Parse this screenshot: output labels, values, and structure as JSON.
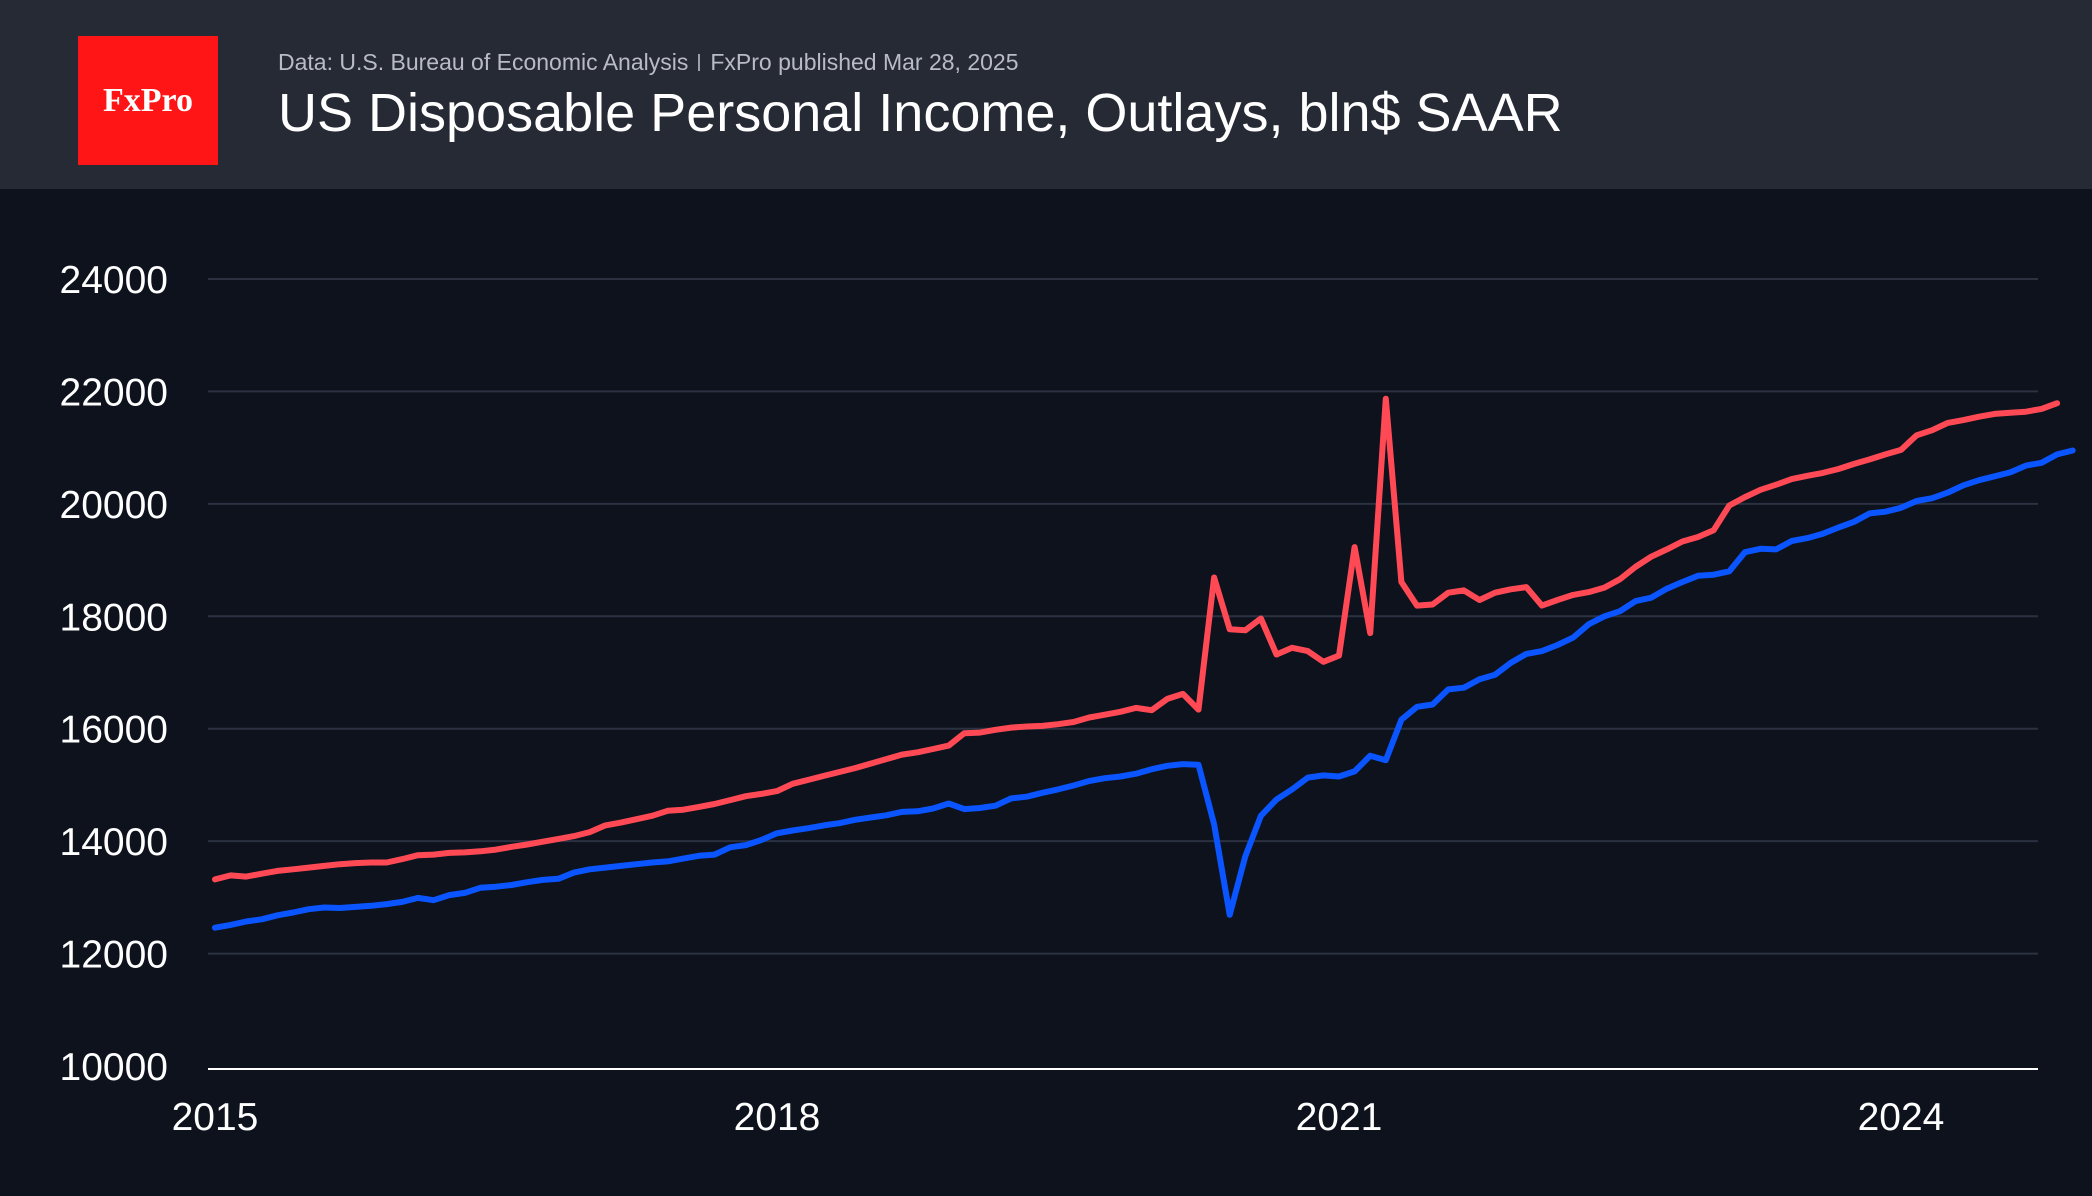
{
  "header": {
    "logo_text": "FxPro",
    "source": "Data: U.S. Bureau of Economic Analysis",
    "published": "FxPro published Mar 28, 2025",
    "title": "US Disposable Personal Income, Outlays, bln$ SAAR"
  },
  "colors": {
    "background": "#0d121d",
    "header_bg": "#262a35",
    "logo_bg": "#ff1515",
    "income": "#ff4a55",
    "outlays": "#0a55ff",
    "grid": "#2b3140"
  },
  "chart_data": {
    "type": "line",
    "title": "US Disposable Personal Income, Outlays, bln$ SAAR",
    "xlabel": "",
    "ylabel": "",
    "x_start": "2015-01",
    "x_end": "2025-01",
    "xticks": [
      {
        "label": "2015",
        "value": 2015
      },
      {
        "label": "2018",
        "value": 2018
      },
      {
        "label": "2021",
        "value": 2021
      },
      {
        "label": "2024",
        "value": 2024
      }
    ],
    "ylim": [
      10000,
      24000
    ],
    "yticks": [
      10000,
      12000,
      14000,
      16000,
      18000,
      20000,
      22000,
      24000
    ],
    "grid": true,
    "legend": "none",
    "series": [
      {
        "color": "#ff4a55",
        "points": [
          [
            "2015-01",
            13320
          ],
          [
            "2015-02",
            13390
          ],
          [
            "2015-03",
            13370
          ],
          [
            "2015-04",
            13420
          ],
          [
            "2015-05",
            13470
          ],
          [
            "2015-06",
            13500
          ],
          [
            "2015-07",
            13530
          ],
          [
            "2015-08",
            13560
          ],
          [
            "2015-09",
            13590
          ],
          [
            "2015-10",
            13610
          ],
          [
            "2015-11",
            13620
          ],
          [
            "2015-12",
            13620
          ],
          [
            "2016-01",
            13680
          ],
          [
            "2016-02",
            13750
          ],
          [
            "2016-03",
            13760
          ],
          [
            "2016-04",
            13790
          ],
          [
            "2016-05",
            13800
          ],
          [
            "2016-06",
            13820
          ],
          [
            "2016-07",
            13850
          ],
          [
            "2016-08",
            13900
          ],
          [
            "2016-09",
            13940
          ],
          [
            "2016-10",
            13990
          ],
          [
            "2016-11",
            14040
          ],
          [
            "2016-12",
            14090
          ],
          [
            "2017-01",
            14160
          ],
          [
            "2017-02",
            14280
          ],
          [
            "2017-03",
            14330
          ],
          [
            "2017-04",
            14390
          ],
          [
            "2017-05",
            14450
          ],
          [
            "2017-06",
            14540
          ],
          [
            "2017-07",
            14560
          ],
          [
            "2017-08",
            14610
          ],
          [
            "2017-09",
            14660
          ],
          [
            "2017-10",
            14730
          ],
          [
            "2017-11",
            14800
          ],
          [
            "2017-12",
            14840
          ],
          [
            "2018-01",
            14890
          ],
          [
            "2018-02",
            15020
          ],
          [
            "2018-03",
            15090
          ],
          [
            "2018-04",
            15160
          ],
          [
            "2018-05",
            15230
          ],
          [
            "2018-06",
            15300
          ],
          [
            "2018-07",
            15380
          ],
          [
            "2018-08",
            15460
          ],
          [
            "2018-09",
            15540
          ],
          [
            "2018-10",
            15580
          ],
          [
            "2018-11",
            15640
          ],
          [
            "2018-12",
            15700
          ],
          [
            "2019-01",
            15920
          ],
          [
            "2019-02",
            15930
          ],
          [
            "2019-03",
            15980
          ],
          [
            "2019-04",
            16020
          ],
          [
            "2019-05",
            16040
          ],
          [
            "2019-06",
            16050
          ],
          [
            "2019-07",
            16080
          ],
          [
            "2019-08",
            16120
          ],
          [
            "2019-09",
            16200
          ],
          [
            "2019-10",
            16250
          ],
          [
            "2019-11",
            16300
          ],
          [
            "2019-12",
            16370
          ],
          [
            "2020-01",
            16330
          ],
          [
            "2020-02",
            16530
          ],
          [
            "2020-03",
            16620
          ],
          [
            "2020-04",
            16340
          ],
          [
            "2020-05",
            18690
          ],
          [
            "2020-06",
            17770
          ],
          [
            "2020-07",
            17750
          ],
          [
            "2020-08",
            17960
          ],
          [
            "2020-09",
            17320
          ],
          [
            "2020-10",
            17440
          ],
          [
            "2020-11",
            17380
          ],
          [
            "2020-12",
            17190
          ],
          [
            "2021-01",
            17300
          ],
          [
            "2021-02",
            19230
          ],
          [
            "2021-03",
            17700
          ],
          [
            "2021-04",
            21870
          ],
          [
            "2021-05",
            18610
          ],
          [
            "2021-06",
            18190
          ],
          [
            "2021-07",
            18210
          ],
          [
            "2021-08",
            18420
          ],
          [
            "2021-09",
            18460
          ],
          [
            "2021-10",
            18290
          ],
          [
            "2021-11",
            18420
          ],
          [
            "2021-12",
            18480
          ],
          [
            "2022-01",
            18520
          ],
          [
            "2022-02",
            18190
          ],
          [
            "2022-03",
            18290
          ],
          [
            "2022-04",
            18380
          ],
          [
            "2022-05",
            18430
          ],
          [
            "2022-06",
            18510
          ],
          [
            "2022-07",
            18660
          ],
          [
            "2022-08",
            18880
          ],
          [
            "2022-09",
            19060
          ],
          [
            "2022-10",
            19190
          ],
          [
            "2022-11",
            19330
          ],
          [
            "2022-12",
            19410
          ],
          [
            "2023-01",
            19530
          ],
          [
            "2023-02",
            19970
          ],
          [
            "2023-03",
            20120
          ],
          [
            "2023-04",
            20250
          ],
          [
            "2023-05",
            20340
          ],
          [
            "2023-06",
            20440
          ],
          [
            "2023-07",
            20500
          ],
          [
            "2023-08",
            20550
          ],
          [
            "2023-09",
            20620
          ],
          [
            "2023-10",
            20710
          ],
          [
            "2023-11",
            20790
          ],
          [
            "2023-12",
            20880
          ],
          [
            "2024-01",
            20960
          ],
          [
            "2024-02",
            21220
          ],
          [
            "2024-03",
            21310
          ],
          [
            "2024-04",
            21440
          ],
          [
            "2024-05",
            21490
          ],
          [
            "2024-06",
            21550
          ],
          [
            "2024-07",
            21600
          ],
          [
            "2024-08",
            21620
          ],
          [
            "2024-09",
            21640
          ],
          [
            "2024-10",
            21690
          ],
          [
            "2024-11",
            21790
          ]
        ]
      },
      {
        "color": "#0a55ff",
        "points": [
          [
            "2015-01",
            12460
          ],
          [
            "2015-02",
            12510
          ],
          [
            "2015-03",
            12570
          ],
          [
            "2015-04",
            12610
          ],
          [
            "2015-05",
            12680
          ],
          [
            "2015-06",
            12730
          ],
          [
            "2015-07",
            12790
          ],
          [
            "2015-08",
            12820
          ],
          [
            "2015-09",
            12810
          ],
          [
            "2015-10",
            12830
          ],
          [
            "2015-11",
            12850
          ],
          [
            "2015-12",
            12880
          ],
          [
            "2016-01",
            12920
          ],
          [
            "2016-02",
            12990
          ],
          [
            "2016-03",
            12950
          ],
          [
            "2016-04",
            13040
          ],
          [
            "2016-05",
            13080
          ],
          [
            "2016-06",
            13170
          ],
          [
            "2016-07",
            13190
          ],
          [
            "2016-08",
            13220
          ],
          [
            "2016-09",
            13270
          ],
          [
            "2016-10",
            13310
          ],
          [
            "2016-11",
            13330
          ],
          [
            "2016-12",
            13440
          ],
          [
            "2017-01",
            13500
          ],
          [
            "2017-02",
            13530
          ],
          [
            "2017-03",
            13560
          ],
          [
            "2017-04",
            13590
          ],
          [
            "2017-05",
            13620
          ],
          [
            "2017-06",
            13640
          ],
          [
            "2017-07",
            13690
          ],
          [
            "2017-08",
            13740
          ],
          [
            "2017-09",
            13760
          ],
          [
            "2017-10",
            13890
          ],
          [
            "2017-11",
            13930
          ],
          [
            "2017-12",
            14020
          ],
          [
            "2018-01",
            14140
          ],
          [
            "2018-02",
            14190
          ],
          [
            "2018-03",
            14230
          ],
          [
            "2018-04",
            14280
          ],
          [
            "2018-05",
            14320
          ],
          [
            "2018-06",
            14380
          ],
          [
            "2018-07",
            14420
          ],
          [
            "2018-08",
            14460
          ],
          [
            "2018-09",
            14520
          ],
          [
            "2018-10",
            14530
          ],
          [
            "2018-11",
            14580
          ],
          [
            "2018-12",
            14670
          ],
          [
            "2019-01",
            14570
          ],
          [
            "2019-02",
            14590
          ],
          [
            "2019-03",
            14630
          ],
          [
            "2019-04",
            14760
          ],
          [
            "2019-05",
            14790
          ],
          [
            "2019-06",
            14860
          ],
          [
            "2019-07",
            14920
          ],
          [
            "2019-08",
            14990
          ],
          [
            "2019-09",
            15070
          ],
          [
            "2019-10",
            15120
          ],
          [
            "2019-11",
            15150
          ],
          [
            "2019-12",
            15200
          ],
          [
            "2020-01",
            15280
          ],
          [
            "2020-02",
            15340
          ],
          [
            "2020-03",
            15370
          ],
          [
            "2020-04",
            15360
          ],
          [
            "2020-05",
            14300
          ],
          [
            "2020-06",
            12690
          ],
          [
            "2020-07",
            13730
          ],
          [
            "2020-08",
            14450
          ],
          [
            "2020-09",
            14740
          ],
          [
            "2020-10",
            14920
          ],
          [
            "2020-11",
            15130
          ],
          [
            "2020-12",
            15170
          ],
          [
            "2021-01",
            15150
          ],
          [
            "2021-02",
            15240
          ],
          [
            "2021-03",
            15520
          ],
          [
            "2021-04",
            15440
          ],
          [
            "2021-05",
            16160
          ],
          [
            "2021-06",
            16390
          ],
          [
            "2021-07",
            16430
          ],
          [
            "2021-08",
            16700
          ],
          [
            "2021-09",
            16730
          ],
          [
            "2021-10",
            16880
          ],
          [
            "2021-11",
            16960
          ],
          [
            "2021-12",
            17170
          ],
          [
            "2022-01",
            17330
          ],
          [
            "2022-02",
            17380
          ],
          [
            "2022-03",
            17490
          ],
          [
            "2022-04",
            17620
          ],
          [
            "2022-05",
            17860
          ],
          [
            "2022-06",
            18000
          ],
          [
            "2022-07",
            18090
          ],
          [
            "2022-08",
            18270
          ],
          [
            "2022-09",
            18330
          ],
          [
            "2022-10",
            18490
          ],
          [
            "2022-11",
            18610
          ],
          [
            "2022-12",
            18720
          ],
          [
            "2023-01",
            18740
          ],
          [
            "2023-02",
            18800
          ],
          [
            "2023-03",
            19140
          ],
          [
            "2023-04",
            19200
          ],
          [
            "2023-05",
            19190
          ],
          [
            "2023-06",
            19340
          ],
          [
            "2023-07",
            19390
          ],
          [
            "2023-08",
            19470
          ],
          [
            "2023-09",
            19580
          ],
          [
            "2023-10",
            19680
          ],
          [
            "2023-11",
            19830
          ],
          [
            "2023-12",
            19860
          ],
          [
            "2024-01",
            19930
          ],
          [
            "2024-02",
            20050
          ],
          [
            "2024-03",
            20100
          ],
          [
            "2024-04",
            20200
          ],
          [
            "2024-05",
            20330
          ],
          [
            "2024-06",
            20420
          ],
          [
            "2024-07",
            20490
          ],
          [
            "2024-08",
            20560
          ],
          [
            "2024-09",
            20680
          ],
          [
            "2024-10",
            20730
          ],
          [
            "2024-11",
            20880
          ],
          [
            "2024-12",
            20950
          ]
        ]
      }
    ]
  }
}
